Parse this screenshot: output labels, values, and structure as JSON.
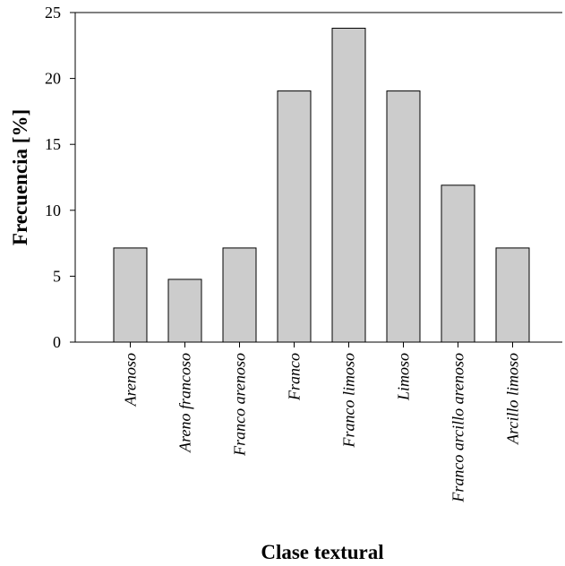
{
  "chart_data": {
    "type": "bar",
    "title": "",
    "xlabel": "Clase textural",
    "ylabel": "Frecuencia [%]",
    "ylim": [
      0,
      25
    ],
    "yticks": [
      0,
      5,
      10,
      15,
      20,
      25
    ],
    "categories": [
      "Arenoso",
      "Areno francoso",
      "Franco arenoso",
      "Franco",
      "Franco limoso",
      "Limoso",
      "Franco arcillo arenoso",
      "Arcillo limoso"
    ],
    "values": [
      7.14,
      4.76,
      7.14,
      19.05,
      23.81,
      19.05,
      11.9,
      7.14
    ],
    "bar_color": "#cccccc",
    "bar_edge_color": "#000000",
    "grid": false,
    "legend": "none"
  }
}
